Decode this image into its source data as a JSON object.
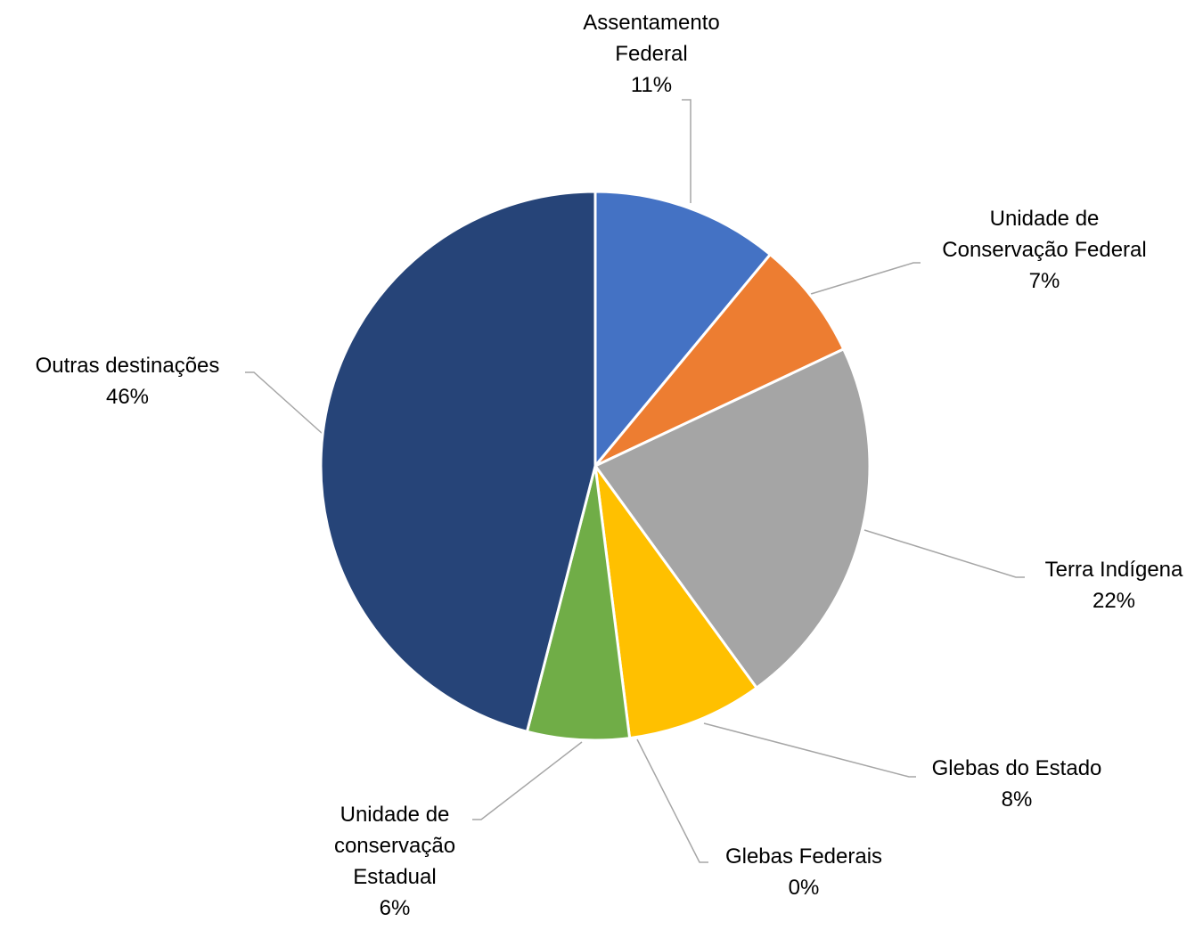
{
  "chart_data": {
    "type": "pie",
    "categories": [
      "Assentamento Federal",
      "Unidade de Conservação Federal",
      "Terra Indígena",
      "Glebas do Estado",
      "Glebas Federais",
      "Unidade de conservação Estadual",
      "Outras destinações"
    ],
    "values": [
      11,
      7,
      22,
      8,
      0,
      6,
      46
    ],
    "value_labels": [
      "11%",
      "7%",
      "22%",
      "8%",
      "0%",
      "6%",
      "46%"
    ],
    "colors": [
      "#4472c4",
      "#ed7d31",
      "#a5a5a5",
      "#ffc000",
      "#5b9bd5",
      "#70ad47",
      "#264478"
    ]
  }
}
